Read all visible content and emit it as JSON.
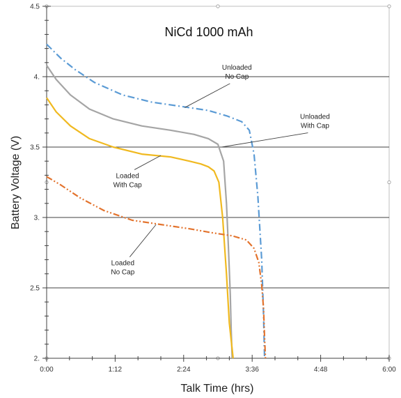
{
  "chart_data": {
    "type": "line",
    "title": "NiCd  1000 mAh",
    "xlabel": "Talk Time (hrs)",
    "ylabel": "Battery Voltage (V)",
    "xlim": [
      0,
      360
    ],
    "ylim": [
      2.0,
      4.5
    ],
    "x_ticks": [
      0,
      72,
      144,
      216,
      288,
      360
    ],
    "x_tick_labels": [
      "0:00",
      "1:12",
      "2:24",
      "3:36",
      "4:48",
      "6:00"
    ],
    "y_ticks": [
      2.0,
      2.5,
      3.0,
      3.5,
      4.0,
      4.5
    ],
    "y_tick_labels": [
      "2.",
      "2.5",
      "3.",
      "3.5",
      "4.",
      "4.5"
    ],
    "horizontal_gridlines": [
      2.5,
      3.0,
      3.5,
      4.0
    ],
    "colors": {
      "unloaded_no_cap": "#5b9bd5",
      "unloaded_with_cap": "#a5a5a5",
      "loaded_with_cap": "#f0b920",
      "loaded_no_cap": "#e3732d",
      "gridline": "#404040",
      "frame": "#bfbfbf"
    },
    "series": [
      {
        "key": "unloaded_no_cap",
        "dash": "dashdot",
        "x": [
          0,
          15,
          30,
          50,
          80,
          110,
          140,
          170,
          190,
          205,
          213,
          218,
          222,
          226,
          228,
          229
        ],
        "y": [
          4.23,
          4.13,
          4.05,
          3.96,
          3.87,
          3.82,
          3.79,
          3.76,
          3.72,
          3.68,
          3.62,
          3.45,
          3.15,
          2.7,
          2.3,
          2.0
        ]
      },
      {
        "key": "unloaded_with_cap",
        "dash": "solid",
        "x": [
          0,
          10,
          25,
          45,
          70,
          100,
          130,
          155,
          170,
          180,
          186,
          189,
          191,
          193,
          194,
          195
        ],
        "y": [
          4.08,
          3.98,
          3.87,
          3.77,
          3.7,
          3.65,
          3.62,
          3.59,
          3.56,
          3.52,
          3.4,
          3.1,
          2.8,
          2.45,
          2.2,
          2.0
        ]
      },
      {
        "key": "loaded_with_cap",
        "dash": "solid",
        "x": [
          0,
          10,
          25,
          45,
          70,
          100,
          130,
          150,
          162,
          170,
          176,
          181,
          185,
          189,
          192,
          196
        ],
        "y": [
          3.85,
          3.75,
          3.65,
          3.56,
          3.5,
          3.45,
          3.43,
          3.4,
          3.38,
          3.36,
          3.33,
          3.25,
          3.0,
          2.6,
          2.25,
          2.0
        ]
      },
      {
        "key": "loaded_no_cap",
        "dash": "dashdotdot",
        "x": [
          0,
          15,
          35,
          60,
          90,
          120,
          150,
          175,
          195,
          210,
          218,
          223,
          226,
          228,
          229,
          230
        ],
        "y": [
          3.29,
          3.23,
          3.14,
          3.05,
          2.98,
          2.95,
          2.92,
          2.89,
          2.87,
          2.84,
          2.78,
          2.68,
          2.52,
          2.35,
          2.15,
          2.0
        ]
      }
    ],
    "annotations": [
      {
        "series": "unloaded_no_cap",
        "lines": [
          "Unloaded",
          "No Cap"
        ],
        "text_x": 200,
        "text_y": 4.05,
        "point_x": 145,
        "point_y": 3.78
      },
      {
        "series": "unloaded_with_cap",
        "lines": [
          "Unloaded",
          "With Cap"
        ],
        "text_x": 282,
        "text_y": 3.7,
        "point_x": 184,
        "point_y": 3.5
      },
      {
        "series": "loaded_with_cap",
        "lines": [
          "Loaded",
          "With Cap"
        ],
        "text_x": 85,
        "text_y": 3.28,
        "point_x": 120,
        "point_y": 3.44
      },
      {
        "series": "loaded_no_cap",
        "lines": [
          "Loaded",
          "No Cap"
        ],
        "text_x": 80,
        "text_y": 2.66,
        "point_x": 115,
        "point_y": 2.95
      }
    ]
  }
}
